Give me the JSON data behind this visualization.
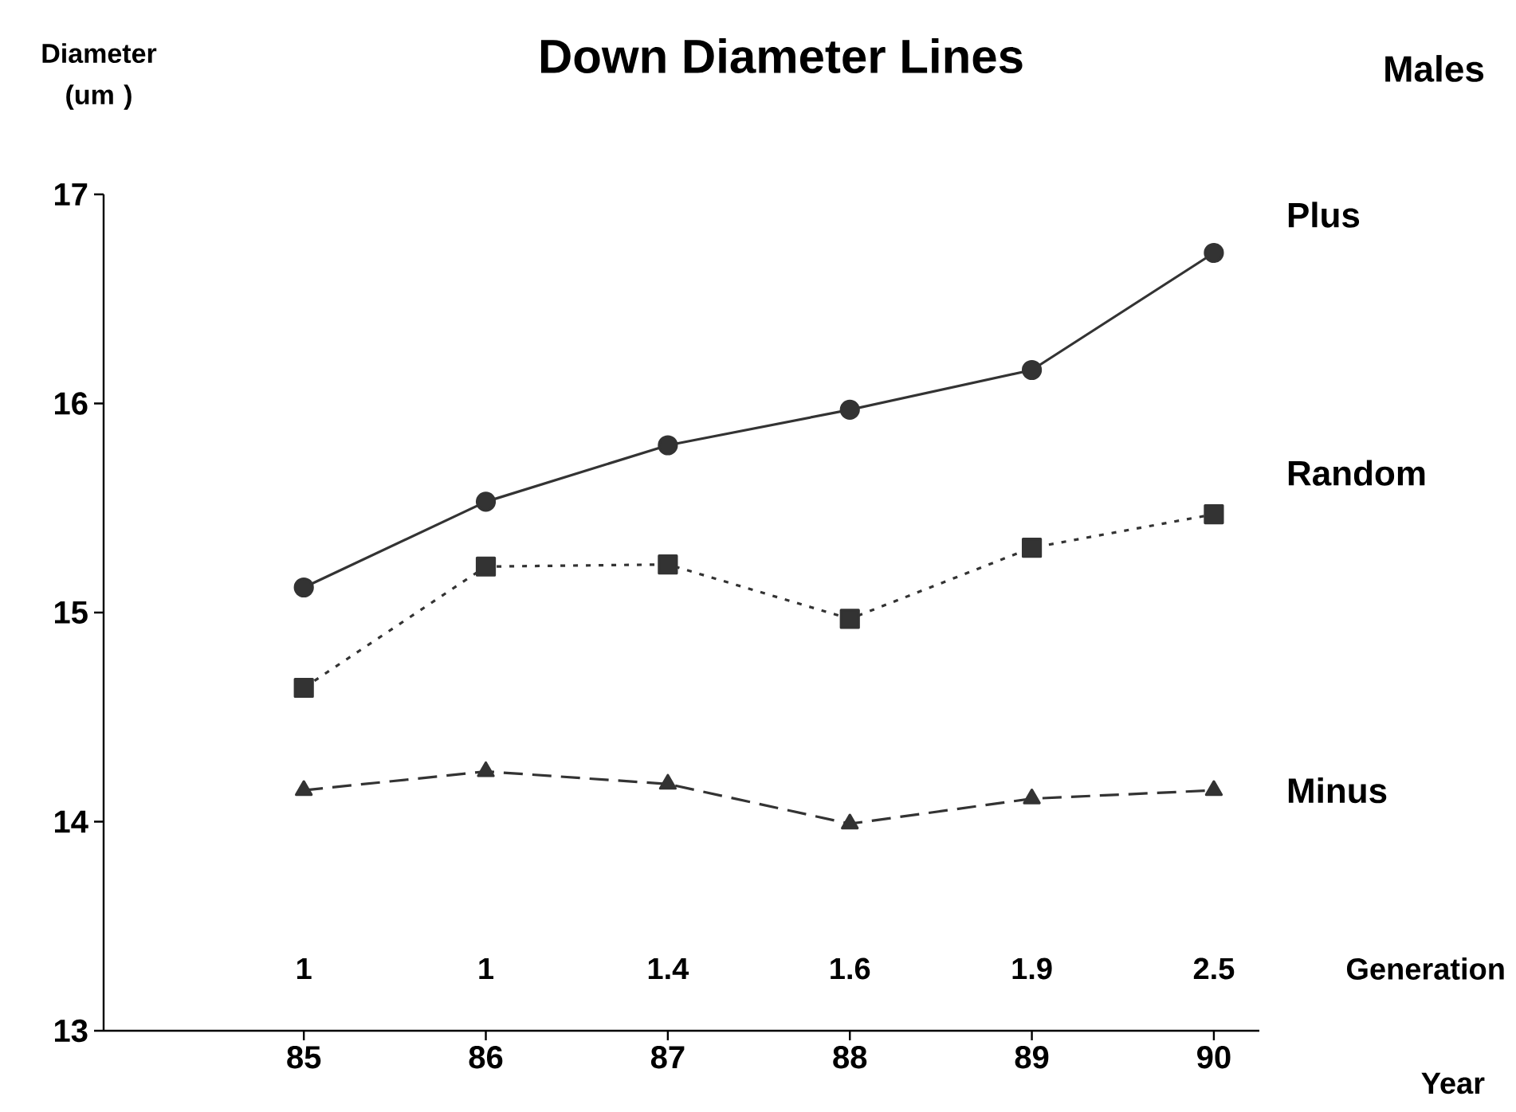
{
  "chart_data": {
    "type": "line",
    "title": "Down Diameter Lines",
    "ylabel": "Diameter (um )",
    "x": [
      85,
      86,
      87,
      88,
      89,
      90
    ],
    "series": [
      {
        "name": "Plus",
        "color": "#333333",
        "marker": "circle",
        "line_style": "solid",
        "values": [
          15.12,
          15.53,
          15.8,
          15.97,
          16.16,
          16.72
        ]
      },
      {
        "name": "Random",
        "color": "#333333",
        "marker": "square",
        "line_style": "dotted",
        "values": [
          14.64,
          15.22,
          15.23,
          14.97,
          15.31,
          15.47
        ]
      },
      {
        "name": "Minus",
        "color": "#333333",
        "marker": "triangle",
        "line_style": "dashed",
        "values": [
          14.15,
          14.24,
          14.18,
          13.99,
          14.11,
          14.15
        ]
      }
    ],
    "xlim": [
      83.9,
      90.25
    ],
    "ylim": [
      13,
      17
    ],
    "xticks": [
      85,
      86,
      87,
      88,
      89,
      90
    ],
    "yticks": [
      13,
      14,
      15,
      16,
      17
    ],
    "annotations": [
      "Males",
      "Year",
      "Generation",
      "1",
      "1",
      "1.4",
      "1.6",
      "1.9",
      "2.5"
    ]
  }
}
